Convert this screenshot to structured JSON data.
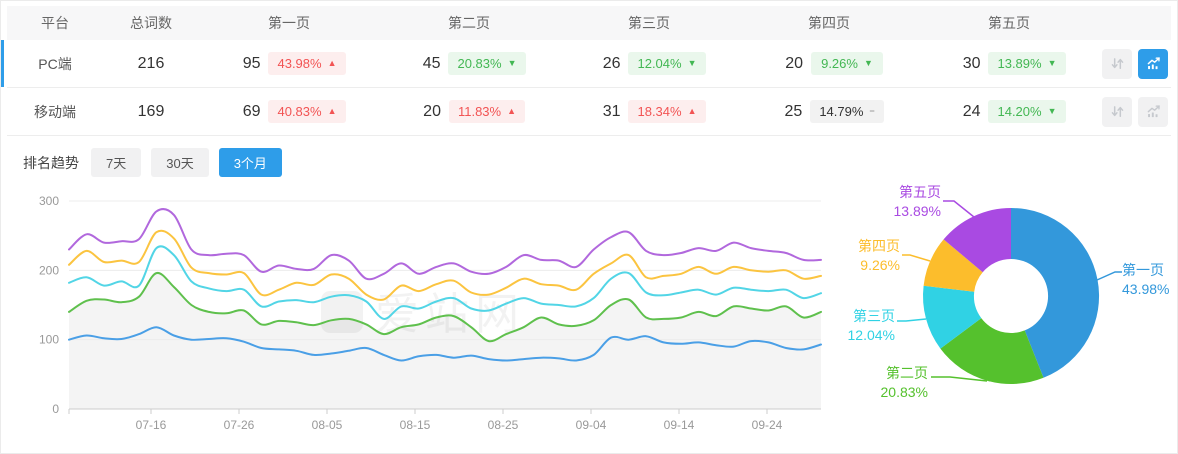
{
  "colors": {
    "accent": "#2e9de9",
    "up_red": "#f25454",
    "up_red_bg": "#fdeeee",
    "down_green": "#43b753",
    "down_green_bg": "#eaf7ec",
    "flat_bg": "#f2f2f2",
    "line_page1": "#4a9fe6",
    "line_page2": "#5fc04d",
    "line_page3": "#52d5e6",
    "line_page4": "#fbc440",
    "line_page5": "#b168dd",
    "pie_page1": "#3398db",
    "pie_page2": "#55c12d",
    "pie_page3": "#30d2e4",
    "pie_page4": "#fcbd2c",
    "pie_page5": "#a94ae2"
  },
  "table": {
    "headers": [
      "平台",
      "总词数",
      "第一页",
      "第二页",
      "第三页",
      "第四页",
      "第五页"
    ],
    "rows": [
      {
        "platform": "PC端",
        "total": "216",
        "selected": true,
        "chart_active": true,
        "pages": [
          {
            "count": "95",
            "pct": "43.98%",
            "dir": "up"
          },
          {
            "count": "45",
            "pct": "20.83%",
            "dir": "down"
          },
          {
            "count": "26",
            "pct": "12.04%",
            "dir": "down"
          },
          {
            "count": "20",
            "pct": "9.26%",
            "dir": "down"
          },
          {
            "count": "30",
            "pct": "13.89%",
            "dir": "down"
          }
        ]
      },
      {
        "platform": "移动端",
        "total": "169",
        "selected": false,
        "chart_active": false,
        "pages": [
          {
            "count": "69",
            "pct": "40.83%",
            "dir": "up"
          },
          {
            "count": "20",
            "pct": "11.83%",
            "dir": "up"
          },
          {
            "count": "31",
            "pct": "18.34%",
            "dir": "up"
          },
          {
            "count": "25",
            "pct": "14.79%",
            "dir": "flat"
          },
          {
            "count": "24",
            "pct": "14.20%",
            "dir": "down"
          }
        ]
      }
    ]
  },
  "trend": {
    "title": "排名趋势",
    "tabs": [
      {
        "label": "7天",
        "active": false
      },
      {
        "label": "30天",
        "active": false
      },
      {
        "label": "3个月",
        "active": true
      }
    ]
  },
  "watermark": "爱站网",
  "chart_data": [
    {
      "type": "line",
      "title": "排名趋势(3个月)",
      "stacked_cumulative": true,
      "x_ticks": [
        "07-16",
        "07-26",
        "08-05",
        "08-15",
        "08-25",
        "09-04",
        "09-14",
        "09-24"
      ],
      "ylim": [
        0,
        300
      ],
      "y_ticks": [
        0,
        100,
        200,
        300
      ],
      "grid": true,
      "series": [
        {
          "name": "第一页",
          "values": [
            100,
            106,
            102,
            101,
            108,
            118,
            106,
            100,
            101,
            102,
            97,
            88,
            86,
            84,
            78,
            80,
            84,
            88,
            78,
            70,
            76,
            78,
            74,
            77,
            72,
            70,
            72,
            74,
            73,
            70,
            78,
            103,
            100,
            105,
            96,
            94,
            96,
            92,
            90,
            98,
            96,
            88,
            86,
            93
          ]
        },
        {
          "name": "第二页",
          "area": true,
          "values": [
            140,
            156,
            158,
            154,
            162,
            196,
            176,
            150,
            140,
            138,
            142,
            122,
            127,
            125,
            121,
            128,
            130,
            122,
            108,
            118,
            122,
            132,
            134,
            118,
            98,
            108,
            118,
            132,
            122,
            120,
            128,
            150,
            158,
            132,
            130,
            132,
            140,
            134,
            148,
            145,
            142,
            148,
            132,
            140
          ]
        },
        {
          "name": "第三页",
          "values": [
            182,
            190,
            178,
            184,
            178,
            232,
            222,
            184,
            174,
            170,
            172,
            148,
            155,
            157,
            154,
            162,
            164,
            155,
            130,
            148,
            145,
            155,
            160,
            145,
            142,
            152,
            160,
            152,
            150,
            148,
            160,
            188,
            196,
            168,
            164,
            168,
            172,
            165,
            175,
            172,
            170,
            172,
            160,
            167
          ]
        },
        {
          "name": "第四页",
          "values": [
            208,
            228,
            212,
            214,
            212,
            255,
            246,
            204,
            196,
            194,
            196,
            165,
            172,
            182,
            179,
            194,
            188,
            165,
            158,
            178,
            170,
            180,
            185,
            168,
            165,
            175,
            188,
            180,
            178,
            172,
            195,
            210,
            222,
            190,
            192,
            195,
            205,
            195,
            205,
            200,
            198,
            200,
            188,
            192
          ]
        },
        {
          "name": "第五页",
          "values": [
            230,
            252,
            240,
            242,
            245,
            285,
            280,
            230,
            222,
            224,
            222,
            198,
            207,
            202,
            202,
            222,
            214,
            188,
            195,
            210,
            195,
            205,
            210,
            198,
            195,
            205,
            222,
            215,
            214,
            205,
            230,
            248,
            255,
            228,
            222,
            225,
            232,
            228,
            240,
            232,
            228,
            225,
            215,
            215
          ]
        }
      ]
    },
    {
      "type": "pie",
      "donut": true,
      "slices": [
        {
          "label": "第一页",
          "value": 43.98,
          "pct": "43.98%"
        },
        {
          "label": "第二页",
          "value": 20.83,
          "pct": "20.83%"
        },
        {
          "label": "第三页",
          "value": 12.04,
          "pct": "12.04%"
        },
        {
          "label": "第四页",
          "value": 9.26,
          "pct": "9.26%"
        },
        {
          "label": "第五页",
          "value": 13.89,
          "pct": "13.89%"
        }
      ]
    }
  ]
}
